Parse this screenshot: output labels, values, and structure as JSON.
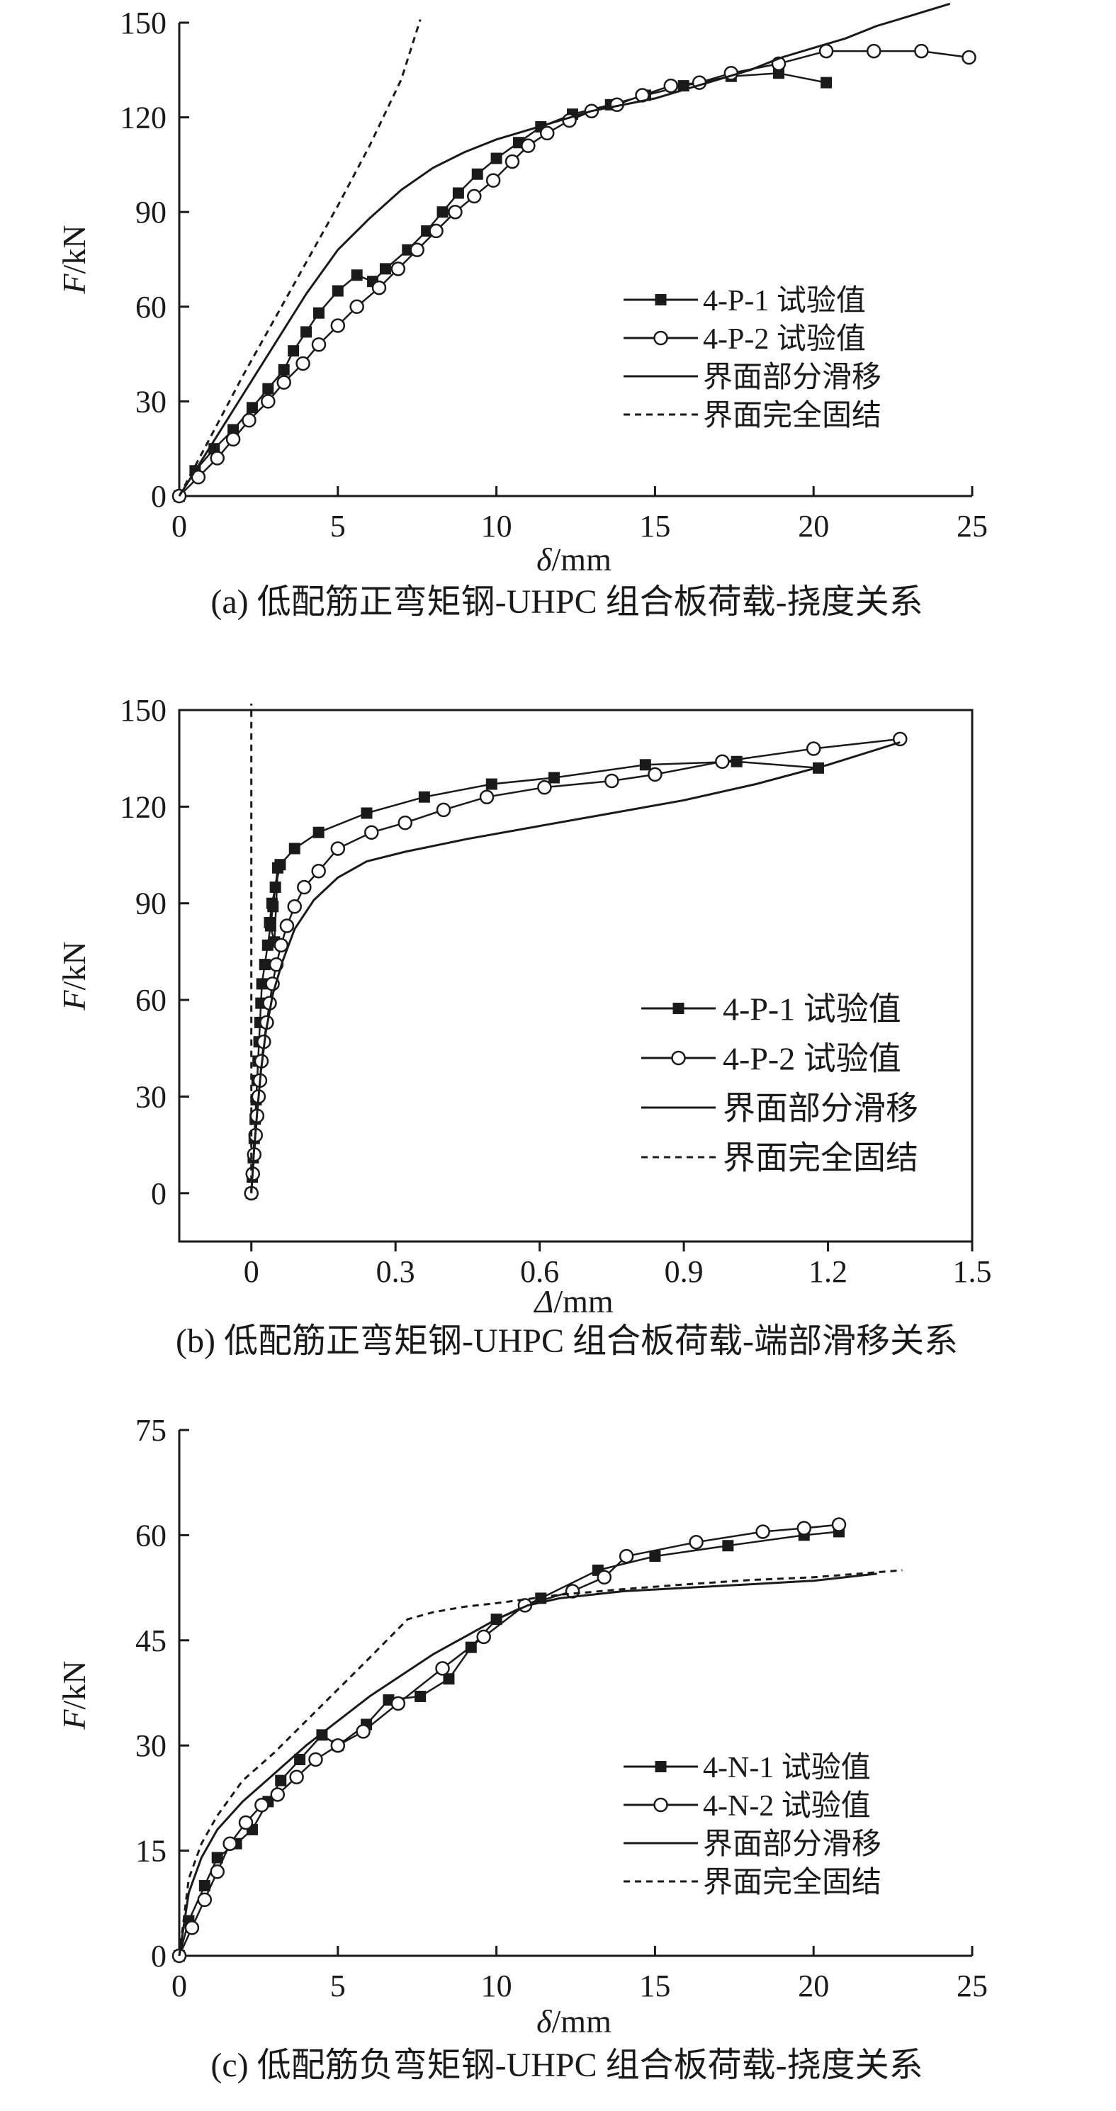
{
  "chart_data": [
    {
      "type": "line",
      "caption": "(a) 低配筋正弯矩钢-UHPC 组合板荷载-挠度关系",
      "xlabel_var": "δ",
      "xlabel_unit": "/mm",
      "ylabel_var": "F",
      "ylabel_unit": "/kN",
      "xlim": [
        0,
        25
      ],
      "ylim": [
        0,
        150
      ],
      "xticks": [
        0,
        5,
        10,
        15,
        20,
        25
      ],
      "yticks": [
        0,
        30,
        60,
        90,
        120,
        150
      ],
      "xtick_labels": [
        "0",
        "5",
        "10",
        "15",
        "20",
        "25"
      ],
      "ytick_labels": [
        "0",
        "30",
        "60",
        "90",
        "120",
        "150"
      ],
      "axes_frame": "open",
      "legend_position": "right",
      "series": [
        {
          "name": "4-P-1 试验值",
          "style": "line-square",
          "x": [
            0,
            0.5,
            1.1,
            1.7,
            2.3,
            2.8,
            3.3,
            3.6,
            4.0,
            4.4,
            5.0,
            5.6,
            6.1,
            6.5,
            7.2,
            7.8,
            8.3,
            8.8,
            9.4,
            10.0,
            10.7,
            11.4,
            12.4,
            13.6,
            14.7,
            15.9,
            17.4,
            18.9,
            20.4
          ],
          "y": [
            0,
            8,
            15,
            21,
            28,
            34,
            40,
            46,
            52,
            58,
            65,
            70,
            68,
            72,
            78,
            84,
            90,
            96,
            102,
            107,
            112,
            117,
            121,
            124,
            127,
            130,
            133,
            134,
            131
          ]
        },
        {
          "name": "4-P-2 试验值",
          "style": "line-circle",
          "x": [
            0,
            0.6,
            1.2,
            1.7,
            2.2,
            2.8,
            3.3,
            3.9,
            4.4,
            5.0,
            5.6,
            6.3,
            6.9,
            7.5,
            8.1,
            8.7,
            9.3,
            9.9,
            10.5,
            11.0,
            11.6,
            12.3,
            13.0,
            13.8,
            14.6,
            15.5,
            16.4,
            17.4,
            18.9,
            20.4,
            21.9,
            23.4,
            24.9
          ],
          "y": [
            0,
            6,
            12,
            18,
            24,
            30,
            36,
            42,
            48,
            54,
            60,
            66,
            72,
            78,
            84,
            90,
            95,
            100,
            106,
            111,
            115,
            119,
            122,
            124,
            127,
            130,
            131,
            134,
            137,
            141,
            141,
            141,
            139
          ]
        },
        {
          "name": "界面部分滑移",
          "style": "solid",
          "x": [
            0,
            1.0,
            2.0,
            3.0,
            4.0,
            5.0,
            6.0,
            7.0,
            8.0,
            9.0,
            10.0,
            11.0,
            12.0,
            13.0,
            14.0,
            15.0,
            16.0,
            17.0,
            18.0,
            19.0,
            20.0,
            21.0,
            22.0,
            23.0,
            24.3
          ],
          "y": [
            0,
            16,
            32,
            48,
            64,
            78,
            88,
            97,
            104,
            109,
            113,
            116,
            119,
            122,
            124,
            126,
            129,
            132,
            135,
            139,
            142,
            145,
            149,
            152,
            156
          ]
        },
        {
          "name": "界面完全固结",
          "style": "dashed",
          "x": [
            0,
            1.0,
            2.0,
            3.0,
            4.0,
            5.0,
            6.0,
            7.0,
            7.6
          ],
          "y": [
            0,
            19,
            38,
            56,
            74,
            92,
            111,
            132,
            151
          ]
        }
      ]
    },
    {
      "type": "line",
      "caption": "(b) 低配筋正弯矩钢-UHPC 组合板荷载-端部滑移关系",
      "xlabel_var": "Δ",
      "xlabel_unit": "/mm",
      "ylabel_var": "F",
      "ylabel_unit": "/kN",
      "xlim": [
        -0.15,
        1.5
      ],
      "ylim": [
        -15,
        150
      ],
      "xticks": [
        0,
        0.3,
        0.6,
        0.9,
        1.2,
        1.5
      ],
      "yticks": [
        0,
        30,
        60,
        90,
        120,
        150
      ],
      "xtick_labels": [
        "0",
        "0.3",
        "0.6",
        "0.9",
        "1.2",
        "1.5"
      ],
      "ytick_labels": [
        "0",
        "30",
        "60",
        "90",
        "120",
        "150"
      ],
      "axes_frame": "box",
      "legend_position": "right",
      "series": [
        {
          "name": "4-P-1 试验值",
          "style": "line-square",
          "x": [
            0,
            0.002,
            0.004,
            0.006,
            0.008,
            0.01,
            0.012,
            0.014,
            0.016,
            0.018,
            0.02,
            0.022,
            0.028,
            0.034,
            0.04,
            0.045,
            0.05,
            0.055,
            0.048,
            0.038,
            0.043,
            0.06,
            0.09,
            0.14,
            0.24,
            0.36,
            0.5,
            0.63,
            0.82,
            1.01,
            1.18
          ],
          "y": [
            0,
            5,
            11,
            17,
            23,
            29,
            35,
            41,
            47,
            53,
            59,
            65,
            71,
            77,
            83,
            89,
            95,
            101,
            78,
            84,
            90,
            102,
            107,
            112,
            118,
            123,
            127,
            129,
            133,
            134,
            132
          ]
        },
        {
          "name": "4-P-2 试验值",
          "style": "line-circle",
          "x": [
            0,
            0.003,
            0.006,
            0.009,
            0.012,
            0.015,
            0.018,
            0.021,
            0.026,
            0.032,
            0.038,
            0.044,
            0.052,
            0.062,
            0.074,
            0.09,
            0.11,
            0.14,
            0.18,
            0.25,
            0.32,
            0.4,
            0.49,
            0.61,
            0.75,
            0.84,
            0.98,
            1.17,
            1.35
          ],
          "y": [
            0,
            6,
            12,
            18,
            24,
            30,
            35,
            41,
            47,
            53,
            59,
            65,
            71,
            77,
            83,
            89,
            95,
            100,
            107,
            112,
            115,
            119,
            123,
            126,
            128,
            130,
            134,
            138,
            141
          ]
        },
        {
          "name": "界面部分滑移",
          "style": "solid",
          "x": [
            0,
            0.005,
            0.012,
            0.02,
            0.03,
            0.045,
            0.065,
            0.09,
            0.13,
            0.18,
            0.24,
            0.32,
            0.45,
            0.6,
            0.75,
            0.9,
            1.05,
            1.2,
            1.35
          ],
          "y": [
            0,
            12,
            25,
            38,
            50,
            62,
            72,
            82,
            91,
            98,
            103,
            106,
            110,
            114,
            118,
            122,
            127,
            133,
            140
          ]
        },
        {
          "name": "界面完全固结",
          "style": "dashed",
          "x": [
            0,
            0,
            0,
            0
          ],
          "y": [
            0,
            50,
            100,
            152
          ]
        }
      ]
    },
    {
      "type": "line",
      "caption": "(c) 低配筋负弯矩钢-UHPC 组合板荷载-挠度关系",
      "xlabel_var": "δ",
      "xlabel_unit": "/mm",
      "ylabel_var": "F",
      "ylabel_unit": "/kN",
      "xlim": [
        0,
        25
      ],
      "ylim": [
        0,
        75
      ],
      "xticks": [
        0,
        5,
        10,
        15,
        20,
        25
      ],
      "yticks": [
        0,
        15,
        30,
        45,
        60,
        75
      ],
      "xtick_labels": [
        "0",
        "5",
        "10",
        "15",
        "20",
        "25"
      ],
      "ytick_labels": [
        "0",
        "15",
        "30",
        "45",
        "60",
        "75"
      ],
      "axes_frame": "open",
      "legend_position": "right",
      "series": [
        {
          "name": "4-N-1 试验值",
          "style": "line-square",
          "x": [
            0,
            0.3,
            0.8,
            1.2,
            1.8,
            2.3,
            2.8,
            3.2,
            3.8,
            4.5,
            5.0,
            5.9,
            6.6,
            7.6,
            8.5,
            9.2,
            10.0,
            11.4,
            13.2,
            15.0,
            17.3,
            19.7,
            20.8
          ],
          "y": [
            0,
            5,
            10,
            14,
            16,
            18,
            22,
            25,
            28,
            31.5,
            30,
            33,
            36.5,
            37,
            39.5,
            44,
            48,
            51,
            55,
            57,
            58.5,
            60,
            60.5
          ]
        },
        {
          "name": "4-N-2 试验值",
          "style": "line-circle",
          "x": [
            0,
            0.4,
            0.8,
            1.2,
            1.6,
            2.1,
            2.6,
            3.1,
            3.7,
            4.3,
            5.0,
            5.8,
            6.9,
            8.3,
            9.6,
            10.9,
            12.4,
            13.4,
            14.1,
            16.3,
            18.4,
            19.7,
            20.8
          ],
          "y": [
            0,
            4,
            8,
            12,
            16,
            19,
            21.5,
            23,
            25.5,
            28,
            30,
            32,
            36,
            41,
            45.5,
            50,
            52,
            54,
            57,
            59,
            60.5,
            61,
            61.5
          ]
        },
        {
          "name": "界面部分滑移",
          "style": "solid",
          "x": [
            0,
            0.3,
            0.7,
            1.2,
            2.0,
            3.0,
            4.0,
            5.0,
            6.0,
            7.0,
            8.0,
            9.0,
            10.0,
            11.0,
            12.0,
            14.0,
            16.0,
            18.0,
            20.0,
            22.0
          ],
          "y": [
            0,
            9,
            14,
            18,
            22,
            26,
            30,
            33.5,
            37,
            40,
            43,
            45.5,
            48,
            50,
            51,
            52,
            52.5,
            53,
            53.5,
            54.5
          ]
        },
        {
          "name": "界面完全固结",
          "style": "dashed",
          "x": [
            0,
            0.3,
            0.7,
            1.2,
            2.0,
            3.0,
            4.0,
            5.0,
            6.0,
            7.2,
            8.0,
            9.0,
            10.0,
            12.0,
            14.0,
            16.0,
            18.0,
            20.0,
            22.8
          ],
          "y": [
            0,
            11,
            16,
            20,
            25,
            29,
            33.5,
            38,
            42.5,
            48,
            49,
            49.8,
            50.3,
            51.5,
            52.3,
            53,
            53.6,
            54,
            55
          ]
        }
      ]
    }
  ]
}
